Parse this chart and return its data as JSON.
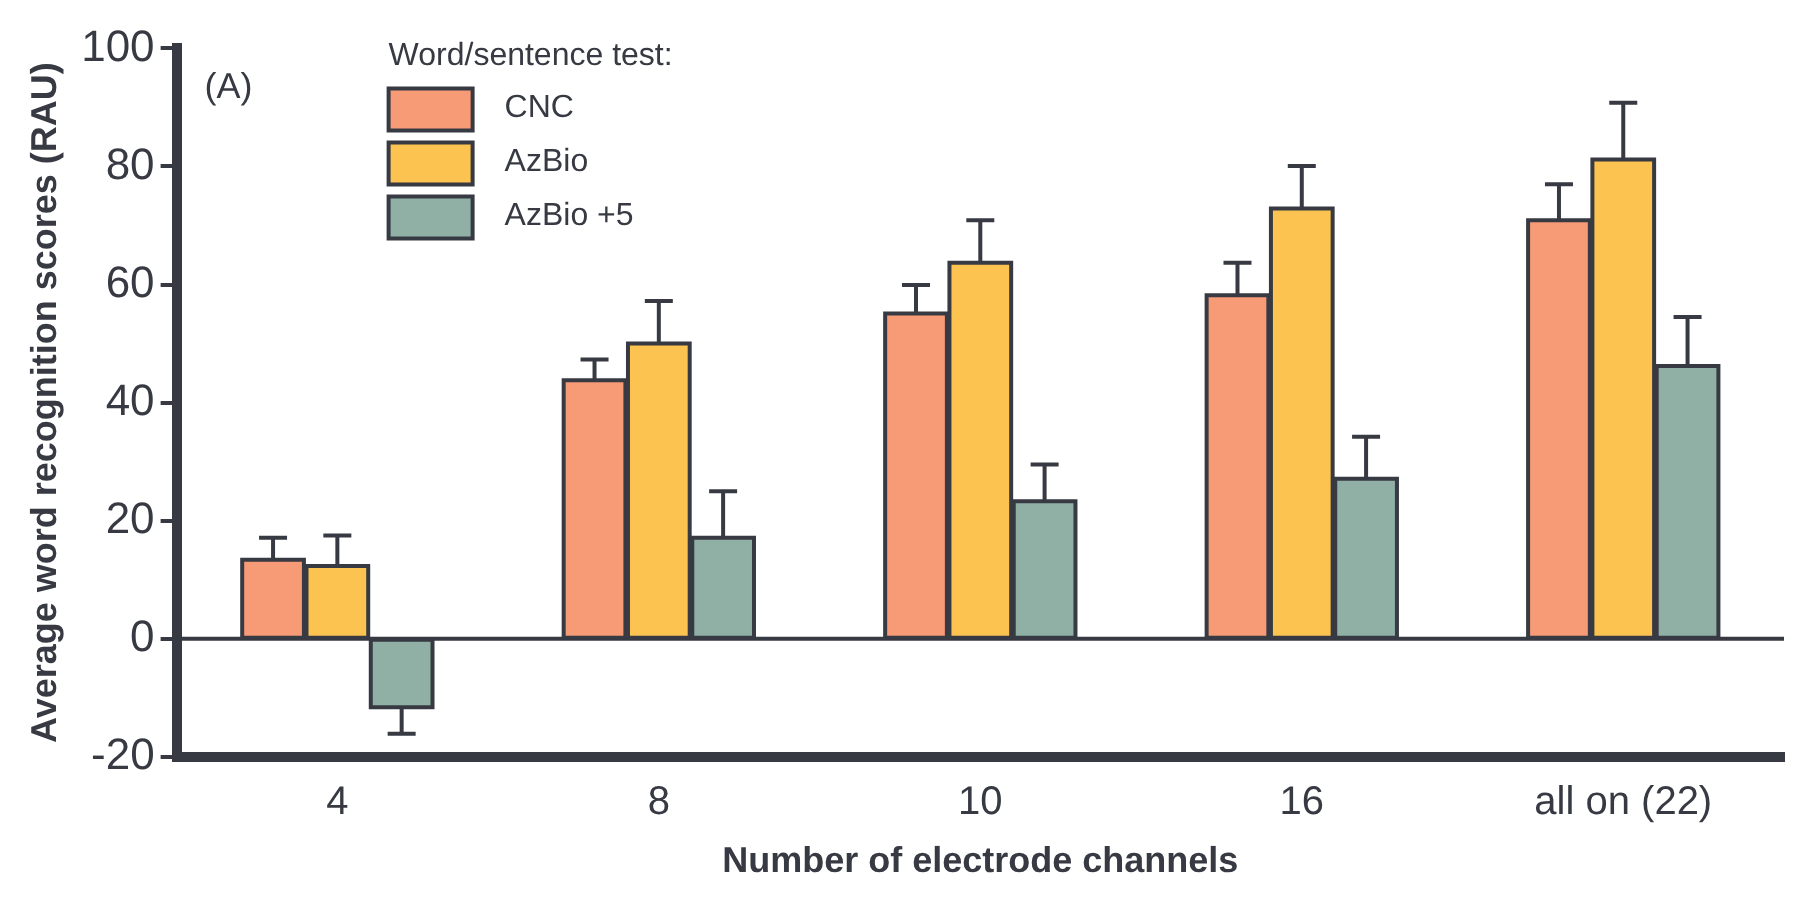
{
  "chart_data": {
    "type": "bar",
    "xlabel": "Number of electrode channels",
    "ylabel": "Average word recognition scores (RAU)",
    "legend_title": "Word/sentence test:",
    "annotations": [
      "(A)"
    ],
    "categories": [
      "4",
      "8",
      "10",
      "16",
      "all on (22)"
    ],
    "series": [
      {
        "name": "CNC",
        "color": "#f79b77",
        "values": [
          13.4,
          43.8,
          55.1,
          58.2,
          70.9
        ],
        "errors": [
          [
            13.4,
            17.1
          ],
          [
            43.8,
            47.3
          ],
          [
            55.1,
            59.9
          ],
          [
            58.2,
            63.7
          ],
          [
            70.9,
            77
          ]
        ]
      },
      {
        "name": "AzBio",
        "color": "#fdc350",
        "values": [
          12.3,
          50,
          63.7,
          72.9,
          81.2
        ],
        "errors": [
          [
            12.3,
            17.5
          ],
          [
            50,
            57.2
          ],
          [
            63.7,
            70.9
          ],
          [
            72.9,
            80.1
          ],
          [
            81.2,
            90.8
          ]
        ]
      },
      {
        "name": "AzBio +5",
        "color": "#90b0a6",
        "values": [
          -11.6,
          17.1,
          23.3,
          27.1,
          46.2
        ],
        "errors": [
          [
            -16.1,
            -11.6
          ],
          [
            17.1,
            25
          ],
          [
            23.3,
            29.5
          ],
          [
            27.1,
            34.2
          ],
          [
            46.2,
            54.5
          ]
        ]
      }
    ],
    "ylim": [
      -20,
      100
    ],
    "yticks": [
      -20,
      0,
      20,
      40,
      60,
      80,
      100
    ],
    "grid": false,
    "legend": "top left",
    "ref_lines": [
      {
        "axis": "y",
        "value": 0,
        "color": "#373a42"
      }
    ]
  }
}
